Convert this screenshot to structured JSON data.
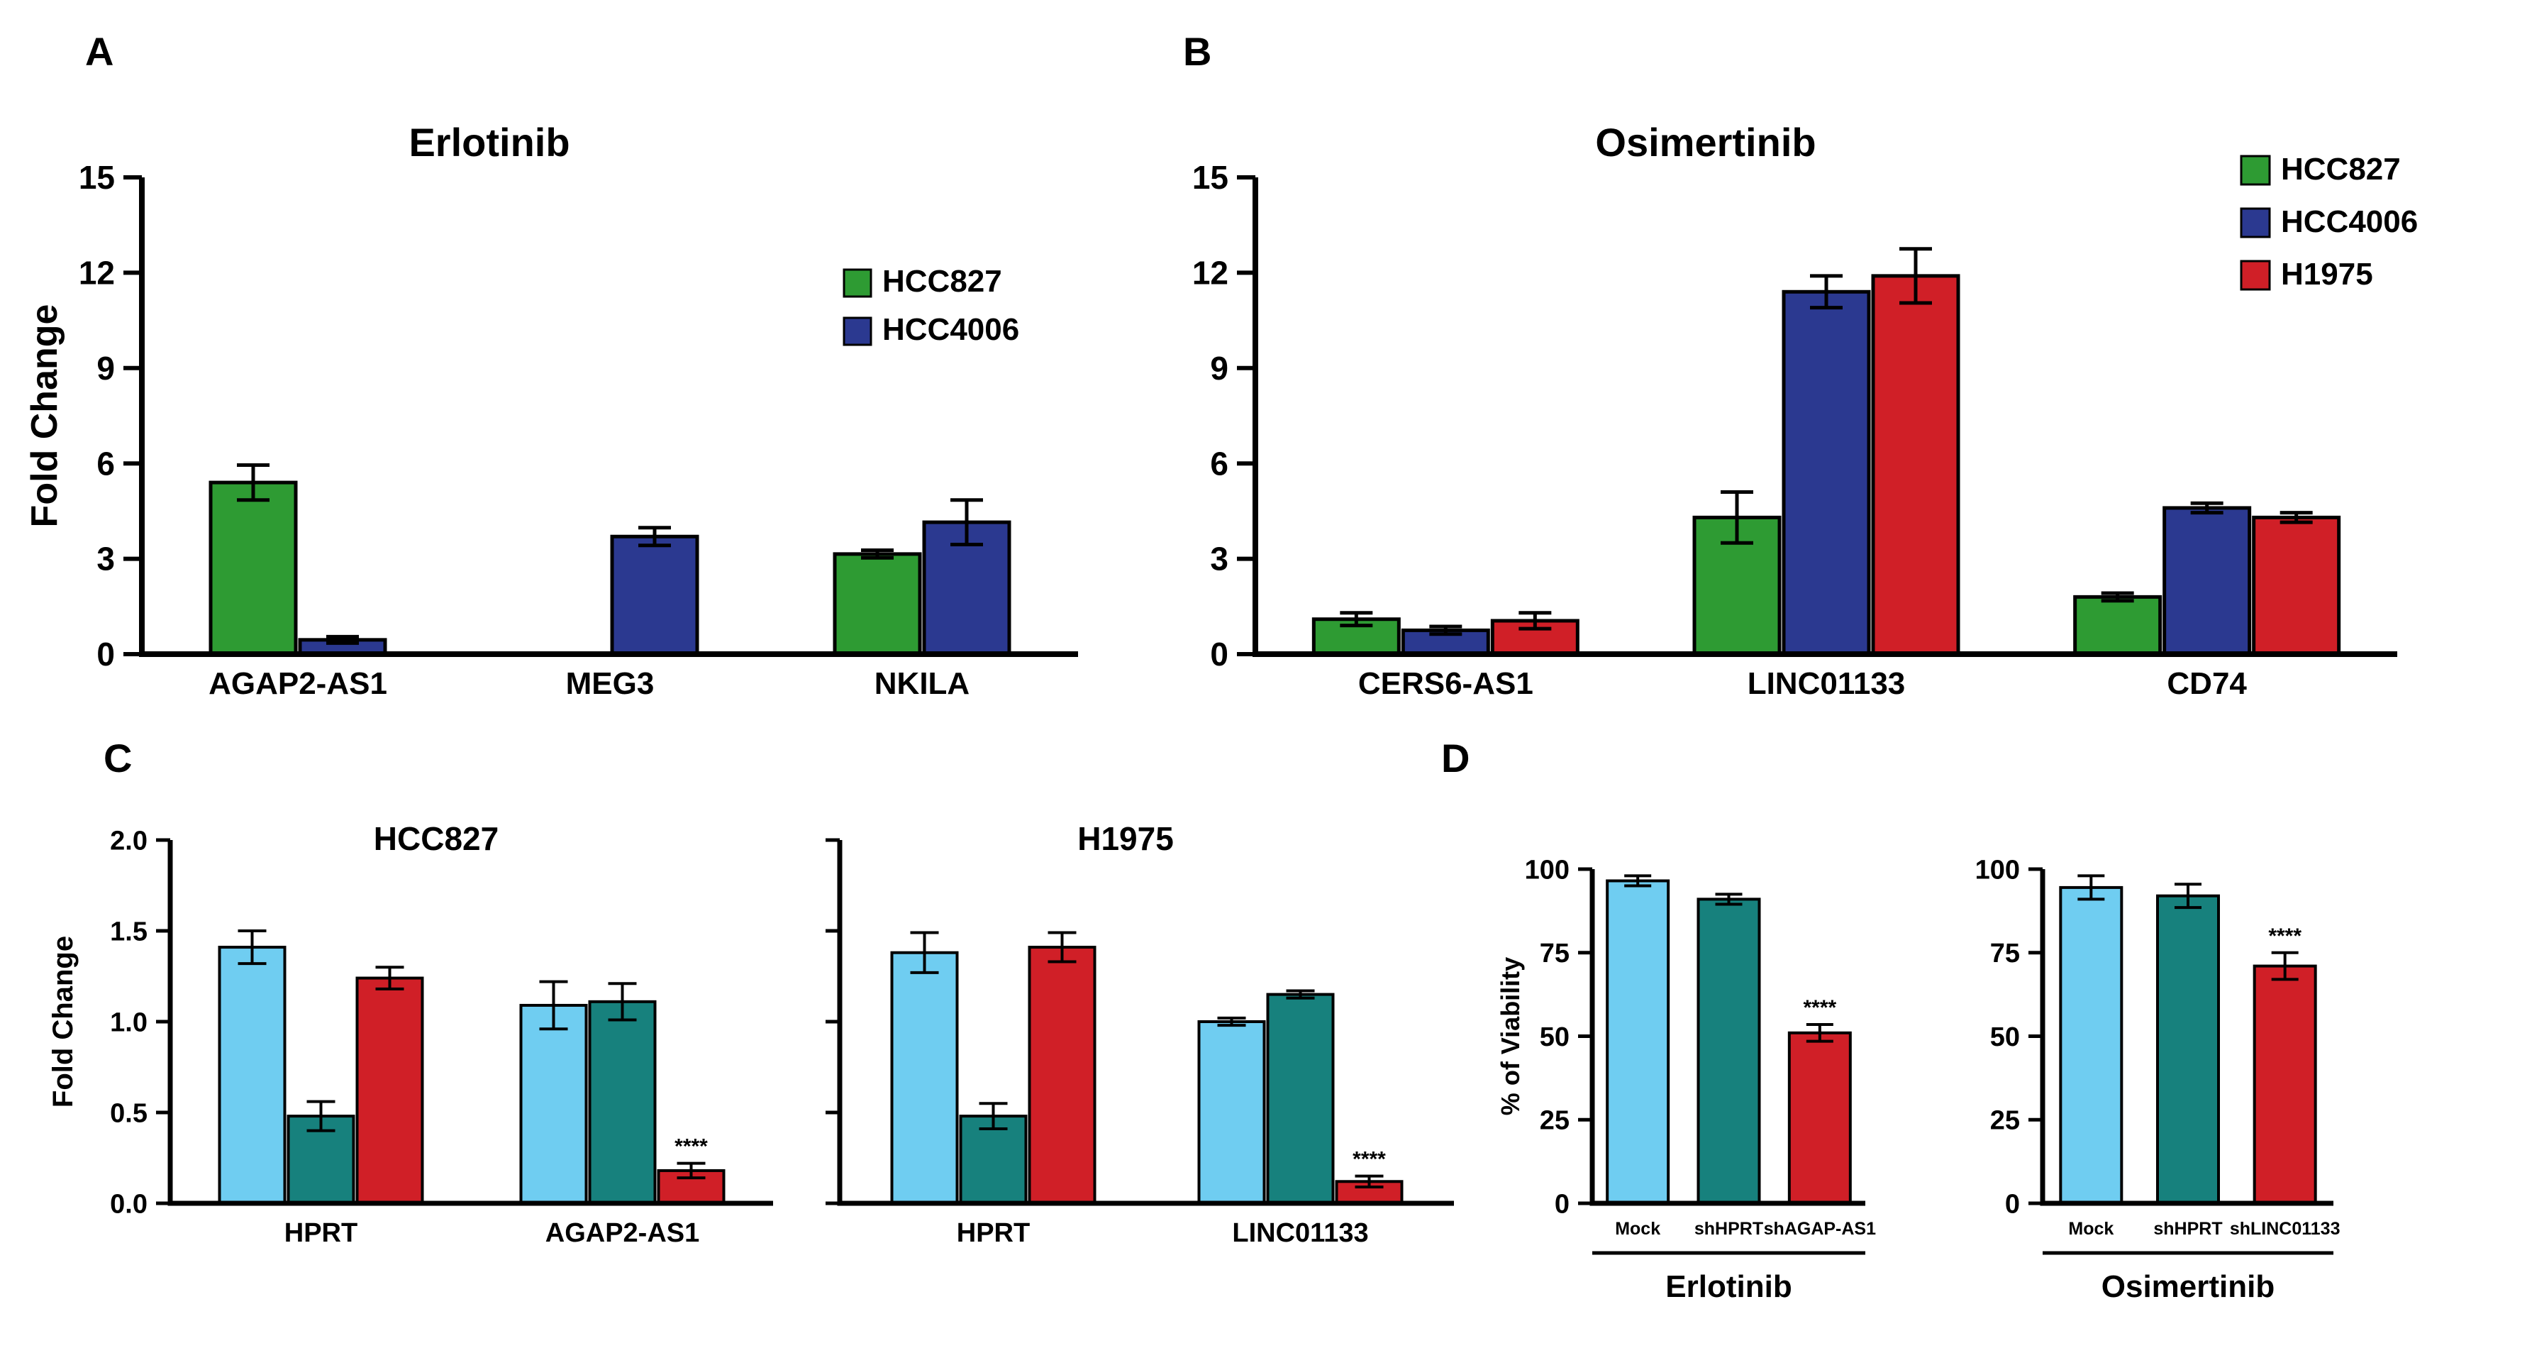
{
  "figure": {
    "background": "#ffffff",
    "panel_labels": {
      "a": "A",
      "b": "B",
      "c": "C",
      "d": "D"
    }
  },
  "chart_data": [
    {
      "id": "panel-a",
      "type": "bar",
      "title": "Erlotinib",
      "ylabel": "Fold Change",
      "ylim": [
        0,
        15
      ],
      "yticks": [
        0,
        3,
        6,
        9,
        12,
        15
      ],
      "ytick_labels": [
        "0",
        "3",
        "6",
        "9",
        "12",
        "15"
      ],
      "categories": [
        "AGAP2-AS1",
        "MEG3",
        "NKILA"
      ],
      "legend_position": "inside-top-right",
      "series": [
        {
          "name": "HCC827",
          "color": "#2e9b33",
          "values": [
            5.4,
            0,
            3.15
          ],
          "errors": [
            0.55,
            0,
            0.12
          ]
        },
        {
          "name": "HCC4006",
          "color": "#2b3990",
          "values": [
            0.45,
            3.7,
            4.15
          ],
          "errors": [
            0.1,
            0.28,
            0.7
          ]
        }
      ],
      "annotations": []
    },
    {
      "id": "panel-b",
      "type": "bar",
      "title": "Osimertinib",
      "ylabel": "",
      "ylim": [
        0,
        15
      ],
      "yticks": [
        0,
        3,
        6,
        9,
        12,
        15
      ],
      "ytick_labels": [
        "0",
        "3",
        "6",
        "9",
        "12",
        "15"
      ],
      "categories": [
        "CERS6-AS1",
        "LINC01133",
        "CD74"
      ],
      "legend_position": "outside-right",
      "series": [
        {
          "name": "HCC827",
          "color": "#2e9b33",
          "values": [
            1.1,
            4.3,
            1.8
          ],
          "errors": [
            0.2,
            0.8,
            0.12
          ]
        },
        {
          "name": "HCC4006",
          "color": "#2b3990",
          "values": [
            0.75,
            11.4,
            4.6
          ],
          "errors": [
            0.12,
            0.5,
            0.15
          ]
        },
        {
          "name": "H1975",
          "color": "#d01f27",
          "values": [
            1.05,
            11.9,
            4.3
          ],
          "errors": [
            0.25,
            0.85,
            0.15
          ]
        }
      ],
      "annotations": []
    },
    {
      "id": "panel-c-hcc827",
      "type": "bar",
      "title": "HCC827",
      "ylabel": "Fold Change",
      "ylim": [
        0,
        2
      ],
      "yticks": [
        0,
        0.5,
        1,
        1.5,
        2
      ],
      "ytick_labels": [
        "0.0",
        "0.5",
        "1.0",
        "1.5",
        "2.0"
      ],
      "categories": [
        "HPRT",
        "AGAP2-AS1"
      ],
      "series": [
        {
          "name": "",
          "color": "#6fcdf1",
          "values": [
            1.41,
            1.09
          ],
          "errors": [
            0.09,
            0.13
          ]
        },
        {
          "name": "",
          "color": "#17817d",
          "values": [
            0.48,
            1.11
          ],
          "errors": [
            0.08,
            0.1
          ]
        },
        {
          "name": "",
          "color": "#d01f27",
          "values": [
            1.24,
            0.18
          ],
          "errors": [
            0.06,
            0.04
          ]
        }
      ],
      "annotations": [
        {
          "series": 2,
          "category": 1,
          "text": "****"
        }
      ]
    },
    {
      "id": "panel-c-h1975",
      "type": "bar",
      "title": "H1975",
      "ylabel": "",
      "ylim": [
        0,
        2
      ],
      "yticks": [
        0,
        0.5,
        1,
        1.5,
        2
      ],
      "ytick_labels": [],
      "categories": [
        "HPRT",
        "LINC01133"
      ],
      "series": [
        {
          "name": "",
          "color": "#6fcdf1",
          "values": [
            1.38,
            1.0
          ],
          "errors": [
            0.11,
            0.02
          ]
        },
        {
          "name": "",
          "color": "#17817d",
          "values": [
            0.48,
            1.15
          ],
          "errors": [
            0.07,
            0.02
          ]
        },
        {
          "name": "",
          "color": "#d01f27",
          "values": [
            1.41,
            0.12
          ],
          "errors": [
            0.08,
            0.03
          ]
        }
      ],
      "annotations": [
        {
          "series": 2,
          "category": 1,
          "text": "****"
        }
      ]
    },
    {
      "id": "panel-d-erlotinib",
      "type": "bar",
      "title": "",
      "ylabel": "% of Viability",
      "ylim": [
        0,
        100
      ],
      "yticks": [
        0,
        25,
        50,
        75,
        100
      ],
      "ytick_labels": [
        "0",
        "25",
        "50",
        "75",
        "100"
      ],
      "categories": [
        "Mock",
        "shHPRT",
        "shAGAP-AS1"
      ],
      "group_label": "Erlotinib",
      "series": [
        {
          "name": "",
          "colors": [
            "#6fcdf1",
            "#17817d",
            "#d01f27"
          ],
          "values": [
            96.5,
            91,
            51
          ],
          "errors": [
            1.5,
            1.5,
            2.5
          ]
        }
      ],
      "annotations": [
        {
          "series": 0,
          "category": 2,
          "text": "****"
        }
      ]
    },
    {
      "id": "panel-d-osimertinib",
      "type": "bar",
      "title": "",
      "ylabel": "",
      "ylim": [
        0,
        100
      ],
      "yticks": [
        0,
        25,
        50,
        75,
        100
      ],
      "ytick_labels": [
        "0",
        "25",
        "50",
        "75",
        "100"
      ],
      "categories": [
        "Mock",
        "shHPRT",
        "shLINC01133"
      ],
      "group_label": "Osimertinib",
      "series": [
        {
          "name": "",
          "colors": [
            "#6fcdf1",
            "#17817d",
            "#d01f27"
          ],
          "values": [
            94.5,
            92,
            71
          ],
          "errors": [
            3.5,
            3.5,
            4
          ]
        }
      ],
      "annotations": [
        {
          "series": 0,
          "category": 2,
          "text": "****"
        }
      ]
    }
  ]
}
